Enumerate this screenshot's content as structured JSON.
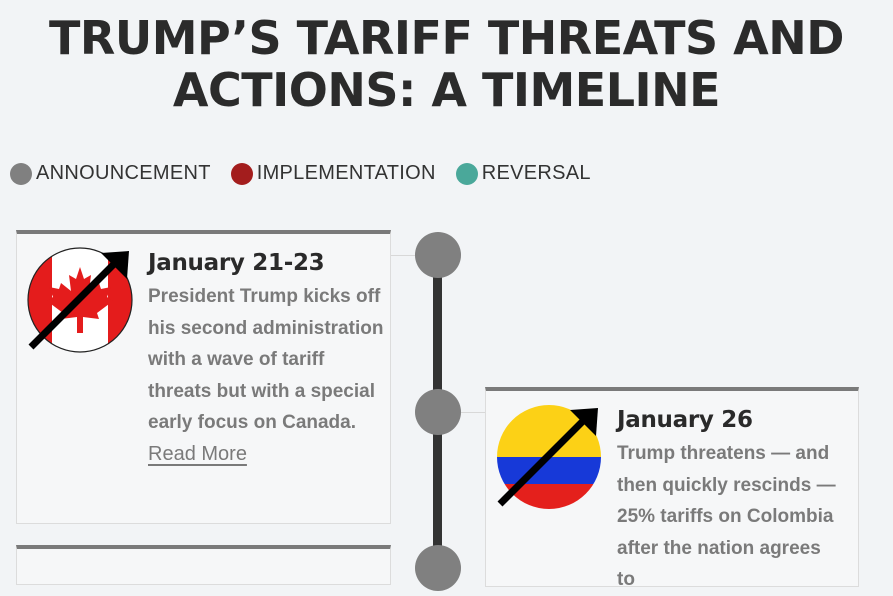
{
  "page": {
    "title": "TRUMP’S TARIFF THREATS AND ACTIONS: A TIMELINE"
  },
  "legend": [
    {
      "label": "ANNOUNCEMENT",
      "color": "#808080"
    },
    {
      "label": "IMPLEMENTATION",
      "color": "#a31d1d"
    },
    {
      "label": "REVERSAL",
      "color": "#4aa89a"
    }
  ],
  "timeline": [
    {
      "date": "January 21-23",
      "text": "President Trump kicks off his second administration with a wave of tariff threats but with a special early focus on Canada.",
      "read_more": "Read More",
      "icon": "canada-flag-icon",
      "type": "announcement"
    },
    {
      "date": "January 26",
      "text": "Trump threatens — and then quickly rescinds — 25% tariffs on Colombia after the nation agrees to",
      "icon": "colombia-flag-icon",
      "type": "announcement"
    }
  ],
  "colors": {
    "announcement": "#808080",
    "card_top_border": "#7a7a7a",
    "spine": "#333333"
  }
}
